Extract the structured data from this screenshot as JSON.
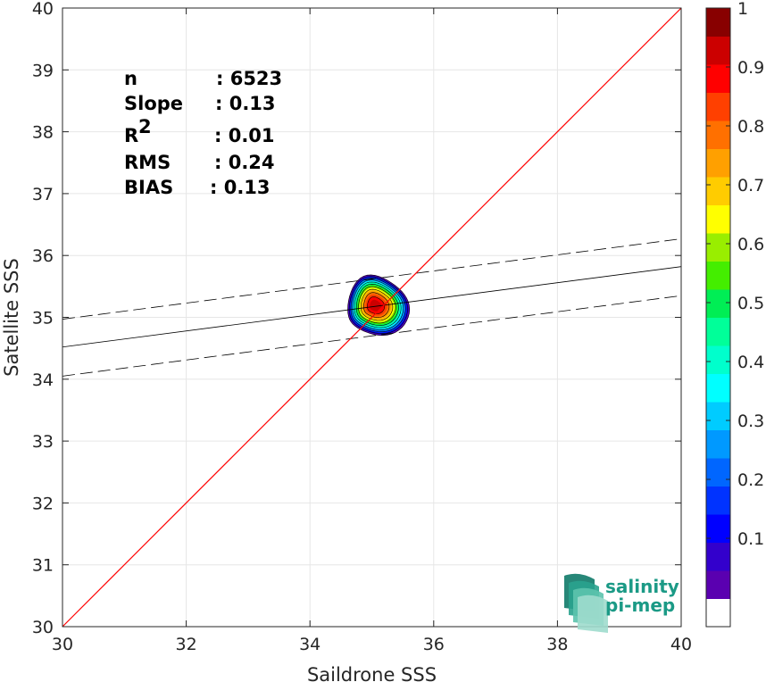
{
  "chart_data": {
    "type": "contour",
    "xlabel": "Saildrone SSS",
    "ylabel": "Satellite SSS",
    "xlim": [
      30,
      40
    ],
    "ylim": [
      30,
      40
    ],
    "x_ticks": [
      "30",
      "32",
      "34",
      "36",
      "38",
      "40"
    ],
    "y_ticks": [
      "30",
      "31",
      "32",
      "33",
      "34",
      "35",
      "36",
      "37",
      "38",
      "39",
      "40"
    ],
    "grid": true,
    "identity_line": {
      "from": [
        30,
        30
      ],
      "to": [
        40,
        40
      ],
      "color": "#ff0000"
    },
    "regression_line": {
      "from": [
        30,
        34.52
      ],
      "to": [
        40,
        35.82
      ],
      "color": "#000000"
    },
    "regression_bounds": [
      {
        "from": [
          30,
          34.97
        ],
        "to": [
          40,
          36.27
        ],
        "style": "dashed"
      },
      {
        "from": [
          30,
          34.05
        ],
        "to": [
          40,
          35.35
        ],
        "style": "dashed"
      }
    ],
    "density_peak": {
      "x": 35.05,
      "y": 35.18
    },
    "density_levels": [
      0.05,
      0.1,
      0.15,
      0.2,
      0.25,
      0.3,
      0.35,
      0.4,
      0.45,
      0.5,
      0.55,
      0.6,
      0.65,
      0.7,
      0.75,
      0.8,
      0.85,
      0.9,
      0.95,
      1.0
    ],
    "colorbar": {
      "ticks": [
        "0.1",
        "0.2",
        "0.3",
        "0.4",
        "0.5",
        "0.6",
        "0.7",
        "0.8",
        "0.9",
        "1"
      ],
      "tick_values": [
        0.1,
        0.2,
        0.3,
        0.4,
        0.5,
        0.6,
        0.7,
        0.8,
        0.9,
        1.0
      ],
      "colors": [
        "#ffffff",
        "#5a00b0",
        "#3300cc",
        "#0000ff",
        "#0033ff",
        "#0066ff",
        "#0099ff",
        "#00ccff",
        "#00ffff",
        "#00ffcc",
        "#00ff99",
        "#00ee55",
        "#44ee00",
        "#99ee00",
        "#ffff00",
        "#ffcc00",
        "#ffa000",
        "#ff7000",
        "#ff4000",
        "#ff0000",
        "#cc0000",
        "#880000"
      ]
    },
    "stats": [
      {
        "label": "n",
        "value": ": 6523"
      },
      {
        "label": "Slope",
        "value": ": 0.13"
      },
      {
        "label": "R",
        "sup": "2",
        "value": ": 0.01"
      },
      {
        "label": "RMS",
        "value": ": 0.24"
      },
      {
        "label": "BIAS",
        "value": ": 0.13"
      }
    ]
  },
  "logo": {
    "line1": "salinity",
    "line2": "pi-mep",
    "color": "#1b9a86"
  }
}
